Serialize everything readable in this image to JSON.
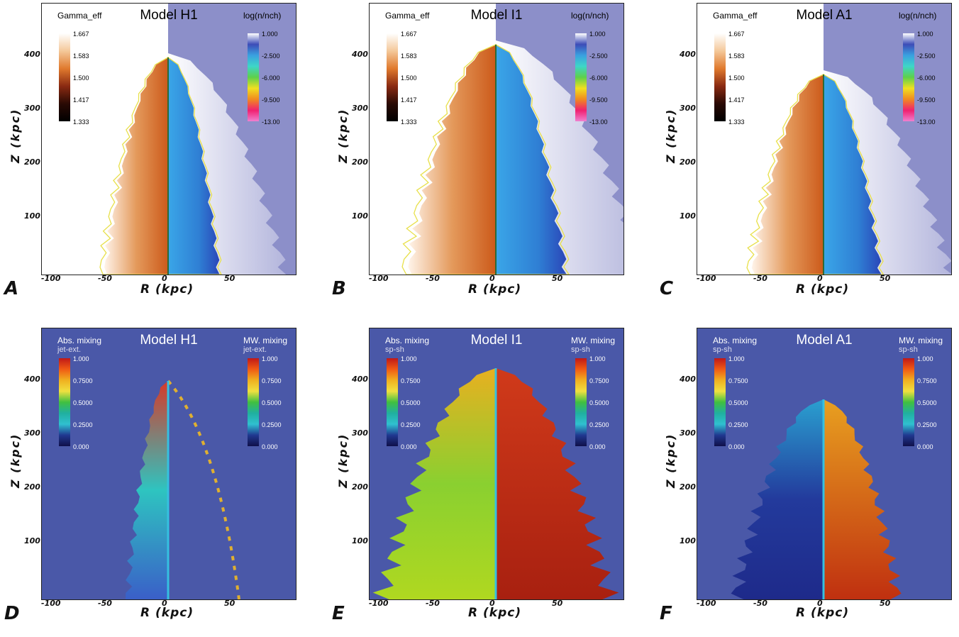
{
  "top_panels": [
    {
      "letter": "A",
      "model": "Model H1",
      "left_label": "Gamma_eff",
      "right_label": "log(n/nch)"
    },
    {
      "letter": "B",
      "model": "Model I1",
      "left_label": "Gamma_eff",
      "right_label": "log(n/nch)"
    },
    {
      "letter": "C",
      "model": "Model A1",
      "left_label": "Gamma_eff",
      "right_label": "log(n/nch)"
    }
  ],
  "bottom_panels": [
    {
      "letter": "D",
      "model": "Model H1",
      "left_label": "Abs. mixing",
      "left_sub": "jet-ext.",
      "right_label": "MW. mixing",
      "right_sub": "jet-ext."
    },
    {
      "letter": "E",
      "model": "Model I1",
      "left_label": "Abs. mixing",
      "left_sub": "sp-sh",
      "right_label": "MW. mixing",
      "right_sub": "sp-sh"
    },
    {
      "letter": "F",
      "model": "Model A1",
      "left_label": "Abs. mixing",
      "left_sub": "sp-sh",
      "right_label": "MW. mixing",
      "right_sub": "sp-sh"
    }
  ],
  "gamma_ticks": [
    "1.667",
    "1.583",
    "1.500",
    "1.417",
    "1.333"
  ],
  "density_ticks": [
    "1.000",
    "-2.500",
    "-6.000",
    "-9.500",
    "-13.00"
  ],
  "mixing_ticks_left": [
    "1.000",
    "0.7500",
    "0.5000",
    "0.2500",
    "0.000"
  ],
  "mixing_ticks_right": [
    "1.000",
    "0.7500",
    "0.5000",
    "0.2500",
    "0.000"
  ],
  "x_ticks": [
    "-100",
    "-50",
    "0",
    "50"
  ],
  "y_ticks": [
    "400",
    "300",
    "200",
    "100"
  ],
  "xlabel": "R  (kpc)",
  "ylabel": "Z  (kpc)",
  "colors": {
    "background_blue": "#8c8fc9",
    "mixing_bg": "#4a58a8",
    "jet_blue": "#3aa0e0",
    "orange": "#d9762e",
    "yellow_contour": "#e8e04a"
  }
}
